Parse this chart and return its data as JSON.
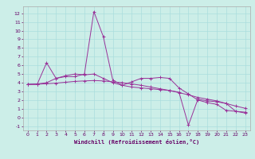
{
  "xlabel": "Windchill (Refroidissement éolien,°C)",
  "background_color": "#cceee8",
  "grid_color": "#aadddd",
  "line_color": "#993399",
  "x_data": [
    0,
    1,
    2,
    3,
    4,
    5,
    6,
    7,
    8,
    9,
    10,
    11,
    12,
    13,
    14,
    15,
    16,
    17,
    18,
    19,
    20,
    21,
    22,
    23
  ],
  "line1_y": [
    3.8,
    3.8,
    6.3,
    4.5,
    4.7,
    4.7,
    5.0,
    12.2,
    9.3,
    4.3,
    3.7,
    4.1,
    4.5,
    4.5,
    4.6,
    4.5,
    3.4,
    2.7,
    2.0,
    1.7,
    1.5,
    0.8,
    0.7,
    0.6
  ],
  "line2_y": [
    3.8,
    3.85,
    4.0,
    4.5,
    4.8,
    5.0,
    4.9,
    5.0,
    4.5,
    4.0,
    3.7,
    3.5,
    3.4,
    3.3,
    3.2,
    3.1,
    2.9,
    -0.9,
    2.1,
    1.9,
    1.8,
    1.6,
    0.7,
    0.5
  ],
  "line3_y": [
    3.8,
    3.82,
    3.88,
    3.95,
    4.05,
    4.15,
    4.2,
    4.25,
    4.2,
    4.1,
    4.0,
    3.85,
    3.7,
    3.5,
    3.3,
    3.1,
    2.85,
    2.6,
    2.3,
    2.1,
    1.9,
    1.6,
    1.3,
    1.05
  ],
  "ylim": [
    -1.5,
    12.8
  ],
  "xlim": [
    -0.5,
    23.5
  ],
  "yticks": [
    -1,
    0,
    1,
    2,
    3,
    4,
    5,
    6,
    7,
    8,
    9,
    10,
    11,
    12
  ],
  "xticks": [
    0,
    1,
    2,
    3,
    4,
    5,
    6,
    7,
    8,
    9,
    10,
    11,
    12,
    13,
    14,
    15,
    16,
    17,
    18,
    19,
    20,
    21,
    22,
    23
  ],
  "tick_fontsize": 4.5,
  "xlabel_fontsize": 5.0
}
